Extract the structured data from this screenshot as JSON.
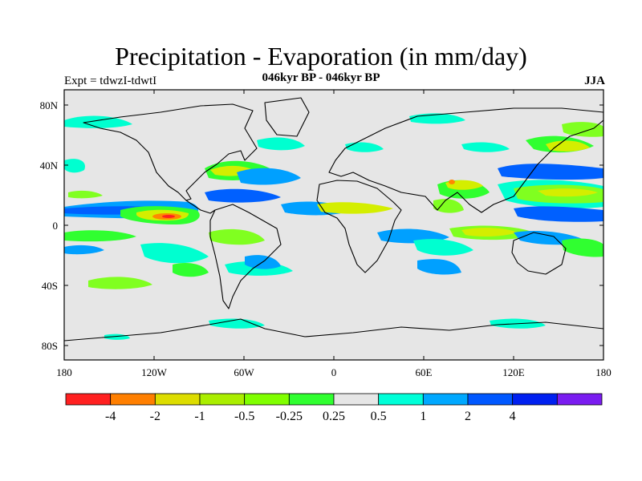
{
  "map": {
    "title": "Precipitation - Evaporation (in mm/day)",
    "subtitle": "046kyr BP - 046kyr BP",
    "experiment_label": "Expt = tdwzI-tdwtI",
    "season_label": "JJA",
    "lat_labels": [
      "80N",
      "40N",
      "0",
      "40S",
      "80S"
    ],
    "lon_labels": [
      "180",
      "120W",
      "60W",
      "0",
      "60E",
      "120E",
      "180"
    ],
    "colors": {
      "background": "#e6e6e6",
      "coast": "#000000",
      "pos_025_05": "#00ffd0",
      "pos_05_1": "#00a0ff",
      "pos_1_2": "#0060ff",
      "neg_025_05": "#30ff30",
      "neg_05_1": "#80ff20",
      "neg_1_2": "#d4ee00",
      "neg_2_4": "#ff8800",
      "neg_4": "#ff2020"
    },
    "colorbar": {
      "colors": [
        "#ff2020",
        "#ff7f00",
        "#dddd00",
        "#aaee00",
        "#80ff00",
        "#30ff30",
        "#e6e6e6",
        "#00ffd8",
        "#00a8ff",
        "#0058ff",
        "#0020f0",
        "#7a1cf0"
      ],
      "labels": [
        "-4",
        "-2",
        "-1",
        "-0.5",
        "-0.25",
        "0.25",
        "0.5",
        "1",
        "2",
        "4"
      ]
    }
  }
}
